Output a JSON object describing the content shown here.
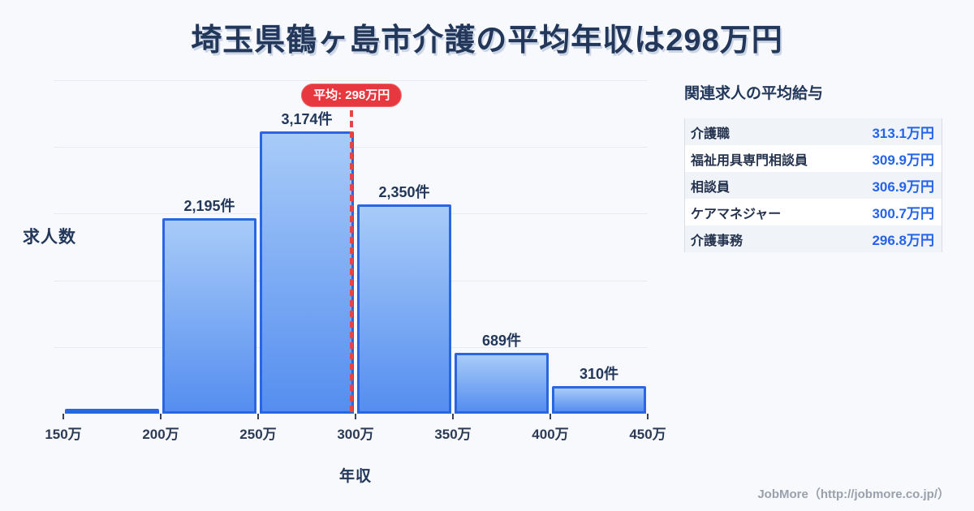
{
  "title": "埼玉県鶴ヶ島市介護の平均年収は298万円",
  "chart_data": {
    "type": "bar",
    "title": "埼玉県鶴ヶ島市介護の平均年収は298万円",
    "xlabel": "年収",
    "ylabel": "求人数",
    "axis_min": 150,
    "axis_max": 450,
    "x_ticks": [
      "150万",
      "200万",
      "250万",
      "300万",
      "350万",
      "400万",
      "450万"
    ],
    "ylim": [
      0,
      3750
    ],
    "grid": "horizontal, 5 equal intervals, unlabeled",
    "bins": [
      {
        "range": "150万-200万",
        "value": 35,
        "label": ""
      },
      {
        "range": "200万-250万",
        "value": 2195,
        "label": "2,195件"
      },
      {
        "range": "250万-300万",
        "value": 3174,
        "label": "3,174件"
      },
      {
        "range": "300万-350万",
        "value": 2350,
        "label": "2,350件"
      },
      {
        "range": "350万-400万",
        "value": 689,
        "label": "689件"
      },
      {
        "range": "400万-450万",
        "value": 310,
        "label": "310件"
      }
    ],
    "mean": {
      "value": 298,
      "label": "平均: 298万円"
    }
  },
  "panel": {
    "title": "関連求人の平均給与",
    "rows": [
      {
        "label": "介護職",
        "value": "313.1万円"
      },
      {
        "label": "福祉用具専門相談員",
        "value": "309.9万円"
      },
      {
        "label": "相談員",
        "value": "306.9万円"
      },
      {
        "label": "ケアマネジャー",
        "value": "300.7万円"
      },
      {
        "label": "介護事務",
        "value": "296.8万円"
      }
    ]
  },
  "footer": {
    "credit": "JobMore（http://jobmore.co.jp/）"
  },
  "colors": {
    "background": "#f7f9fc",
    "title_navy": "#22375a",
    "bar_fill_top": "#a8cbf8",
    "bar_fill_bottom": "#558ef0",
    "bar_border": "#2a65e2",
    "mean_red": "#e6383e",
    "value_blue": "#2563eb",
    "gridline": "#e6eaf1",
    "row_alt": "#f0f4f9",
    "table_border": "#d8dde6",
    "credit_gray": "#9aa1ac"
  }
}
